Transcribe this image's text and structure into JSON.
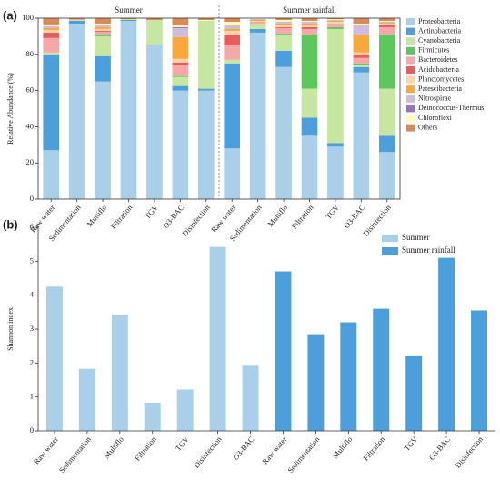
{
  "chart_data": [
    {
      "type": "bar",
      "stacked": true,
      "panel_label": "(a)",
      "ylabel": "Relative Abundance (%)",
      "groups": [
        "Summer",
        "Summer rainfall"
      ],
      "categories": [
        "Raw water",
        "Sedimentation",
        "Multiflo",
        "Filtration",
        "TGV",
        "O3-BAC",
        "Disinfection",
        "Raw water",
        "Sedimentation",
        "Multiflo",
        "Filtration",
        "TGV",
        "O3-BAC",
        "Disinfection"
      ],
      "ylim": [
        0,
        100
      ],
      "yticks": [
        0,
        20,
        40,
        60,
        80,
        100
      ],
      "legend": "right",
      "series": [
        {
          "name": "Proteobacteria",
          "color": "#a9d0e8",
          "values": [
            27,
            97,
            65,
            98.5,
            85,
            60,
            60,
            28,
            92,
            73,
            35,
            29,
            70,
            26
          ]
        },
        {
          "name": "Actinobacteria",
          "color": "#4d9fdc",
          "values": [
            53,
            1.5,
            14,
            0.5,
            0.5,
            2.5,
            1,
            47,
            2,
            9,
            10,
            2,
            3,
            9
          ]
        },
        {
          "name": "Cyanobacteria",
          "color": "#c6e6a2",
          "values": [
            1,
            0.5,
            11,
            0.5,
            13.5,
            5,
            37.5,
            2,
            3,
            9,
            16,
            63,
            1,
            26
          ]
        },
        {
          "name": "Firmicutes",
          "color": "#5cc85c",
          "values": [
            0,
            0,
            0.5,
            0,
            0,
            0.5,
            0,
            0,
            0,
            0.5,
            30,
            1,
            1,
            30
          ]
        },
        {
          "name": "Bacteroidetes",
          "color": "#f5a8a8",
          "values": [
            8,
            0.5,
            2,
            0,
            0,
            6,
            0,
            8,
            1,
            3,
            3,
            2,
            3,
            4
          ]
        },
        {
          "name": "Acidobacteria",
          "color": "#e85c5c",
          "values": [
            3,
            0,
            0.5,
            0,
            0,
            1.5,
            0,
            6,
            0,
            0.5,
            1,
            0,
            2,
            1
          ]
        },
        {
          "name": "Planctomycetes",
          "color": "#fbd6a4",
          "values": [
            1.5,
            0,
            1,
            0,
            0,
            2,
            0,
            2,
            0.5,
            1,
            1,
            1,
            1,
            1
          ]
        },
        {
          "name": "Patescibacteria",
          "color": "#f9a83e",
          "values": [
            1,
            0,
            1,
            0,
            0,
            12,
            0,
            1,
            0.5,
            1,
            1,
            0.5,
            10,
            0.5
          ]
        },
        {
          "name": "Nitrospirae",
          "color": "#cfbbdb",
          "values": [
            1,
            0,
            1,
            0,
            0,
            5,
            0,
            2,
            0.5,
            1,
            1,
            0.5,
            5,
            0.5
          ]
        },
        {
          "name": "Deinococcus-Thermus",
          "color": "#9b72c1",
          "values": [
            0,
            0,
            0,
            0,
            0,
            0.5,
            0,
            0,
            0,
            0,
            0,
            0,
            0,
            0
          ]
        },
        {
          "name": "Chloroflexi",
          "color": "#fdfbb4",
          "values": [
            1,
            0,
            1,
            0,
            0,
            1,
            0.5,
            2,
            0.5,
            1,
            0.5,
            0.5,
            1,
            0.5
          ]
        },
        {
          "name": "Others",
          "color": "#d98a5c",
          "values": [
            3.5,
            0.5,
            3,
            0.5,
            1,
            4,
            1,
            2,
            0,
            1,
            1.5,
            0.5,
            3,
            1.5
          ]
        }
      ]
    },
    {
      "type": "bar",
      "stacked": false,
      "panel_label": "(b)",
      "ylabel": "Shannon index",
      "categories": [
        "Raw water",
        "Sedimentation",
        "Multiflo",
        "Filtration",
        "TGV",
        "Disinfection",
        "O3-BAC",
        "Raw water",
        "Sedimentation",
        "Multiflo",
        "Filtration",
        "TGV",
        "O3-BAC",
        "Disinfection"
      ],
      "ylim": [
        0,
        6
      ],
      "yticks": [
        0,
        1,
        2,
        3,
        4,
        5,
        6
      ],
      "legend": "upper right",
      "series": [
        {
          "name": "Summer",
          "color": "#a9d0e8",
          "values": [
            4.25,
            1.83,
            3.42,
            0.83,
            1.22,
            5.42,
            1.92,
            null,
            null,
            null,
            null,
            null,
            null,
            null
          ]
        },
        {
          "name": "Summer rainfall",
          "color": "#4d9fdc",
          "values": [
            null,
            null,
            null,
            null,
            null,
            null,
            null,
            4.7,
            2.85,
            3.2,
            3.6,
            2.2,
            5.1,
            3.55
          ]
        }
      ]
    }
  ]
}
